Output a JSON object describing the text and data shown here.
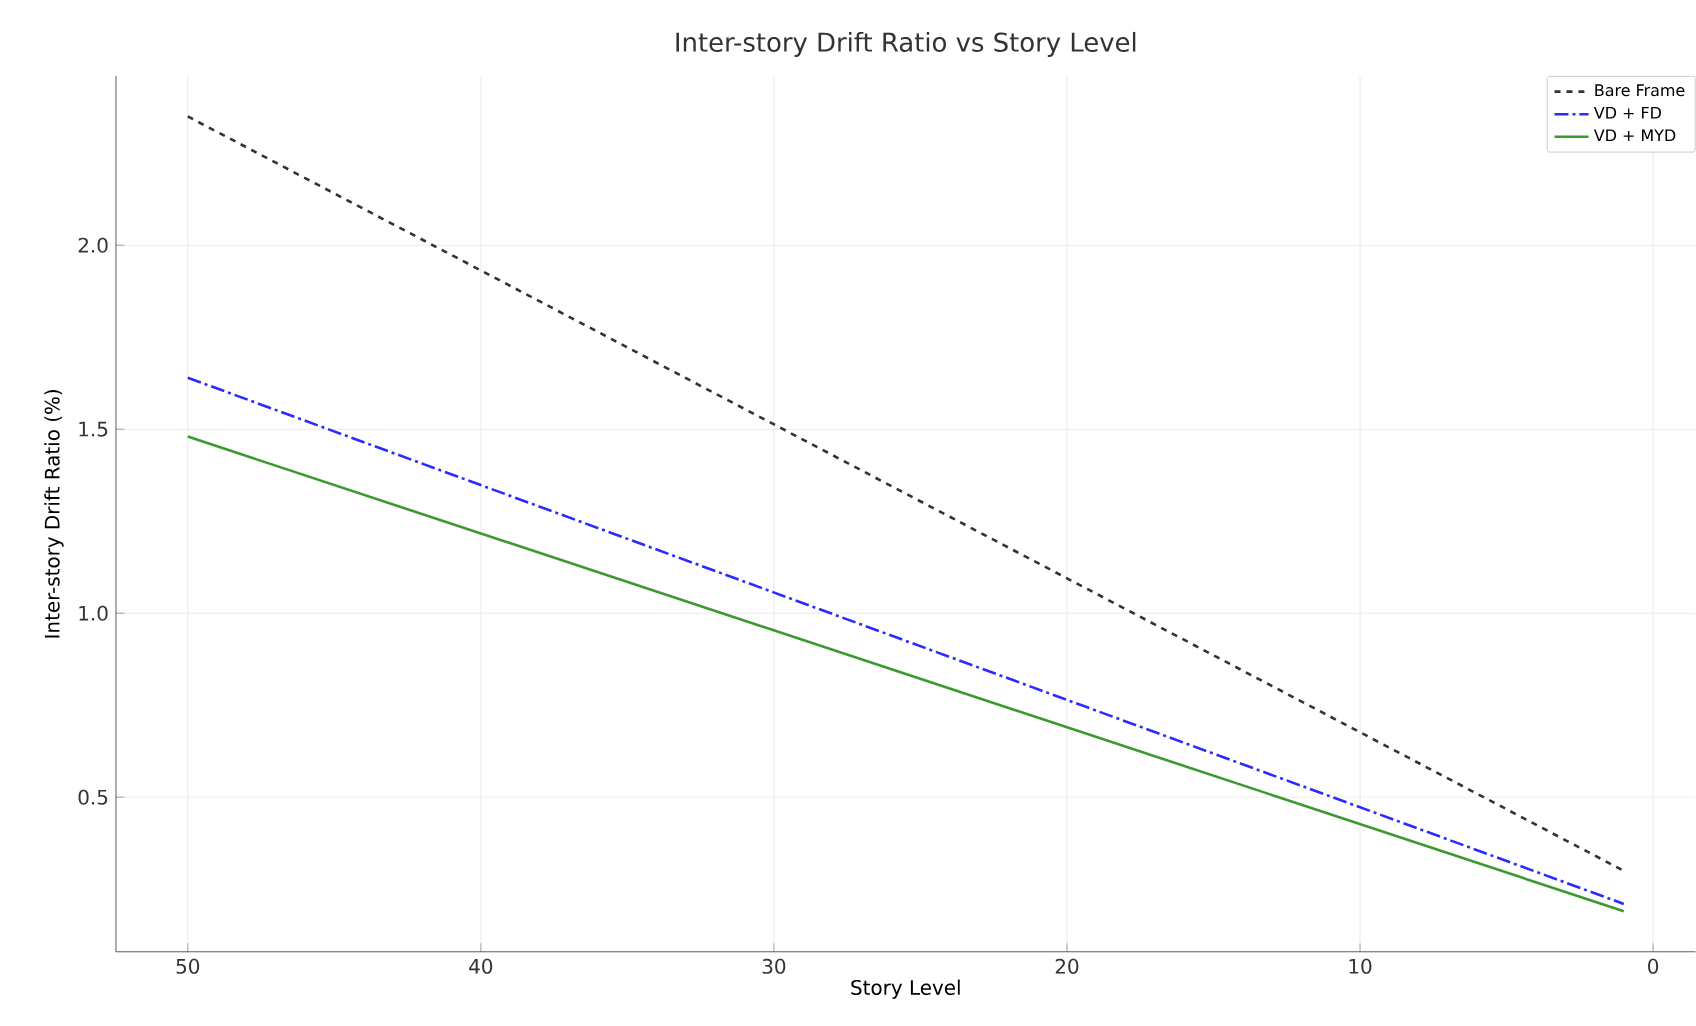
{
  "chart_data": {
    "type": "line",
    "title": "Inter-story Drift Ratio vs Story Level",
    "xlabel": "Story Level",
    "ylabel": "Inter-story Drift Ratio (%)",
    "xlim": [
      52.45,
      -1.45
    ],
    "ylim": [
      0.08,
      2.46
    ],
    "xticks": [
      0,
      10,
      20,
      30,
      40,
      50
    ],
    "yticks": [
      {
        "value": 0.5,
        "label": "0.5"
      },
      {
        "value": 1.0,
        "label": "1.0"
      },
      {
        "value": 1.5,
        "label": "1.5"
      },
      {
        "value": 2.0,
        "label": "2.0"
      }
    ],
    "grid": true,
    "legend": "top right",
    "marker": "none",
    "x": [
      50,
      1
    ],
    "series": [
      {
        "name": "Bare Frame",
        "color": "#333333",
        "line_style": "dashed",
        "values": [
          2.35,
          0.3
        ]
      },
      {
        "name": "VD + FD",
        "color": "#2b2bff",
        "line_style": "dashdot",
        "values": [
          1.64,
          0.21
        ]
      },
      {
        "name": "VD + MYD",
        "color": "#3a9a2e",
        "line_style": "solid",
        "values": [
          1.48,
          0.19
        ]
      }
    ]
  }
}
